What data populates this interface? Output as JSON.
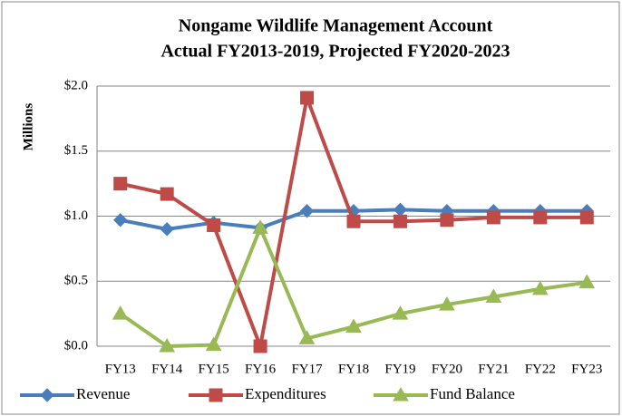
{
  "chart_data": {
    "type": "line",
    "title": "Nongame Wildlife  Management Account",
    "subtitle": "Actual FY2013-2019, Projected FY2020-2023",
    "y_label": "Millions",
    "categories": [
      "FY13",
      "FY14",
      "FY15",
      "FY16",
      "FY17",
      "FY18",
      "FY19",
      "FY20",
      "FY21",
      "FY22",
      "FY23"
    ],
    "series": [
      {
        "name": "Revenue",
        "color": "#4a7ebb",
        "marker": "diamond",
        "values": [
          0.97,
          0.9,
          0.95,
          0.91,
          1.04,
          1.04,
          1.05,
          1.04,
          1.04,
          1.04,
          1.04
        ]
      },
      {
        "name": "Expenditures",
        "color": "#be4b48",
        "marker": "square",
        "values": [
          1.25,
          1.17,
          0.93,
          0.0,
          1.91,
          0.96,
          0.96,
          0.97,
          0.99,
          0.99,
          0.99
        ]
      },
      {
        "name": "Fund Balance",
        "color": "#98b954",
        "marker": "triangle",
        "values": [
          0.25,
          0.0,
          0.01,
          0.91,
          0.06,
          0.15,
          0.25,
          0.32,
          0.38,
          0.44,
          0.49
        ]
      }
    ],
    "ylim": [
      0,
      2
    ],
    "yticks": [
      {
        "value": 0,
        "label": "$0.0"
      },
      {
        "value": 0.5,
        "label": "$0.5"
      },
      {
        "value": 1,
        "label": "$1.0"
      },
      {
        "value": 1.5,
        "label": "$1.5"
      },
      {
        "value": 2,
        "label": "$2.0"
      }
    ],
    "grid": true,
    "legend": "bottom"
  }
}
